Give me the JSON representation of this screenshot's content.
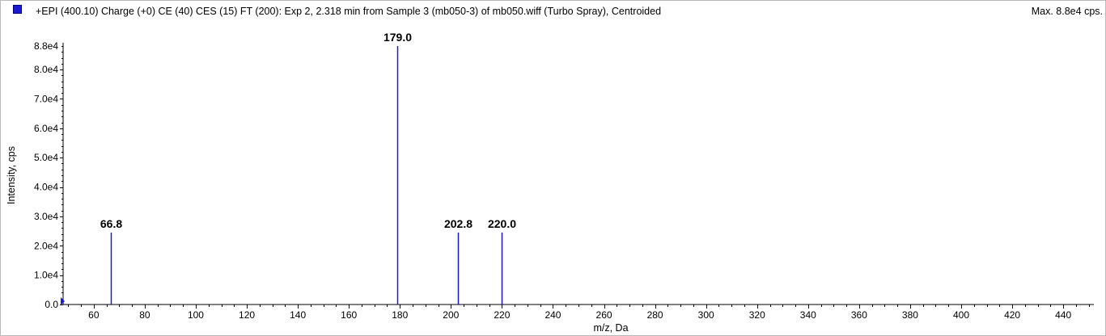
{
  "header": {
    "title": "+EPI (400.10) Charge (+0) CE (40) CES (15) FT (200): Exp 2, 2.318 min from Sample 3 (mb050-3) of mb050.wiff (Turbo Spray), Centroided",
    "max_label": "Max. 8.8e4 cps."
  },
  "colors": {
    "series": "#1a1ad0",
    "axis": "#000000",
    "frame": "#b9b9b9"
  },
  "chart_data": {
    "type": "bar",
    "title": "+EPI (400.10) Charge (+0) CE (40) CES (15) FT (200): Exp 2, 2.318 min from Sample 3 (mb050-3) of mb050.wiff (Turbo Spray), Centroided",
    "xlabel": "m/z, Da",
    "ylabel": "Intensity, cps",
    "xlim": [
      48,
      452
    ],
    "ylim": [
      0,
      88000
    ],
    "x_ticks": [
      60,
      80,
      100,
      120,
      140,
      160,
      180,
      200,
      220,
      240,
      260,
      280,
      300,
      320,
      340,
      360,
      380,
      400,
      420,
      440
    ],
    "y_ticks": [
      {
        "value": 0,
        "label": "0.0"
      },
      {
        "value": 10000,
        "label": "1.0e4"
      },
      {
        "value": 20000,
        "label": "2.0e4"
      },
      {
        "value": 30000,
        "label": "3.0e4"
      },
      {
        "value": 40000,
        "label": "4.0e4"
      },
      {
        "value": 50000,
        "label": "5.0e4"
      },
      {
        "value": 60000,
        "label": "6.0e4"
      },
      {
        "value": 70000,
        "label": "7.0e4"
      },
      {
        "value": 80000,
        "label": "8.0e4"
      },
      {
        "value": 88000,
        "label": "8.8e4"
      }
    ],
    "peaks": [
      {
        "mz": 66.8,
        "intensity": 24500,
        "label": "66.8"
      },
      {
        "mz": 179.0,
        "intensity": 88000,
        "label": "179.0"
      },
      {
        "mz": 202.8,
        "intensity": 24500,
        "label": "202.8"
      },
      {
        "mz": 220.0,
        "intensity": 24500,
        "label": "220.0"
      }
    ],
    "grid": false,
    "legend": "none"
  }
}
